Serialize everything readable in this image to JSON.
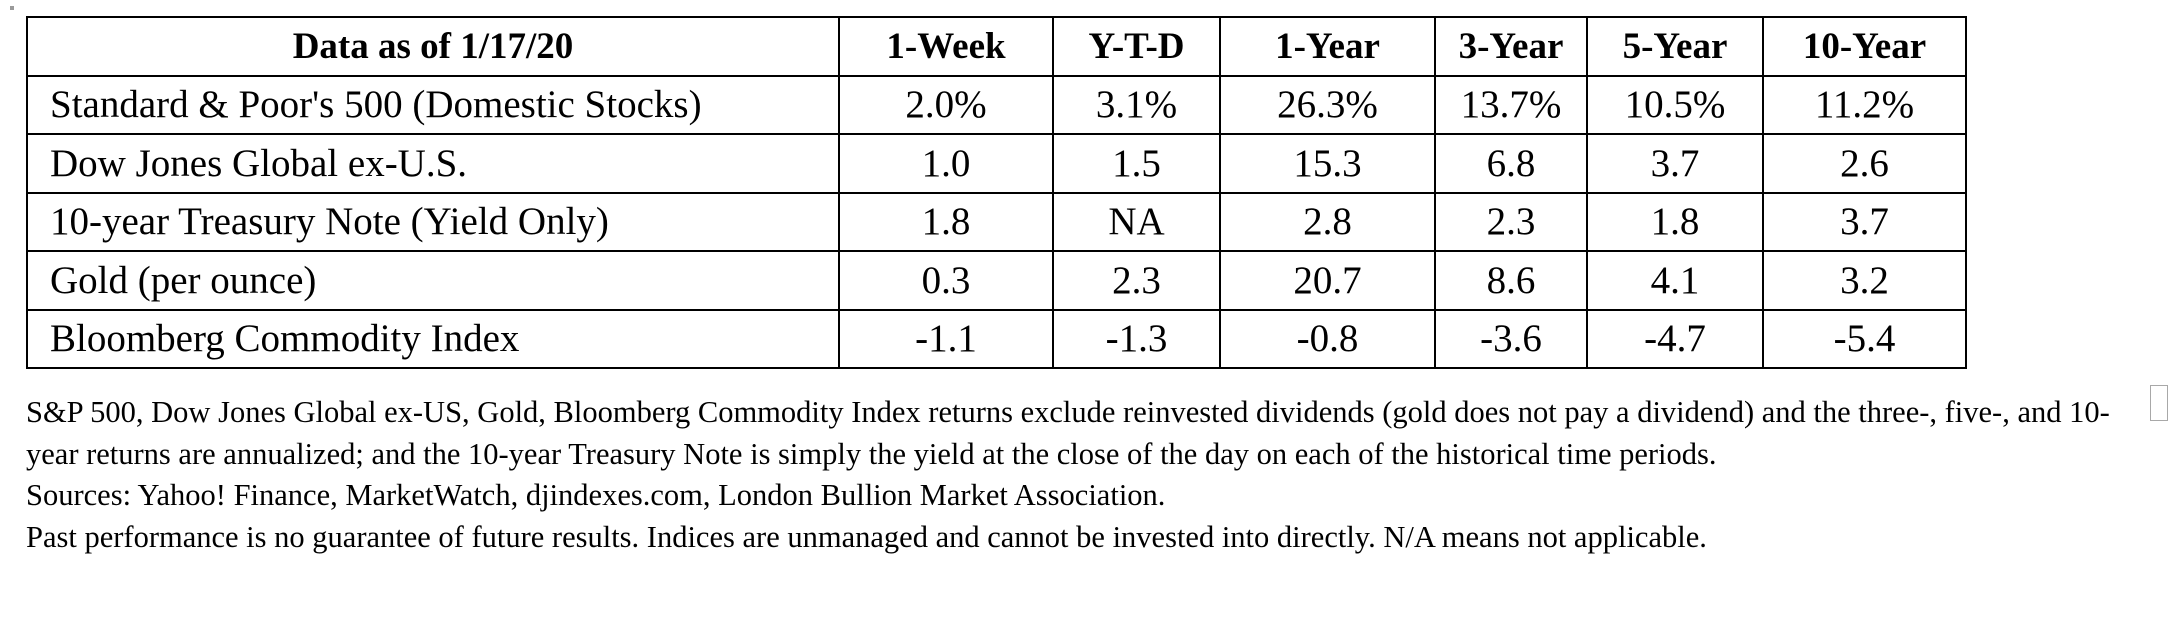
{
  "table": {
    "headers": [
      "Data as of 1/17/20",
      "1-Week",
      "Y-T-D",
      "1-Year",
      "3-Year",
      "5-Year",
      "10-Year"
    ],
    "rows": [
      {
        "label": "Standard & Poor's 500 (Domestic Stocks)",
        "values": [
          "2.0%",
          "3.1%",
          "26.3%",
          "13.7%",
          "10.5%",
          "11.2%"
        ]
      },
      {
        "label": "Dow Jones Global ex-U.S.",
        "values": [
          "1.0",
          "1.5",
          "15.3",
          "6.8",
          "3.7",
          "2.6"
        ]
      },
      {
        "label": "10-year Treasury Note (Yield Only)",
        "values": [
          "1.8",
          "NA",
          "2.8",
          "2.3",
          "1.8",
          "3.7"
        ]
      },
      {
        "label": "Gold (per ounce)",
        "values": [
          "0.3",
          "2.3",
          "20.7",
          "8.6",
          "4.1",
          "3.2"
        ]
      },
      {
        "label": "Bloomberg Commodity Index",
        "values": [
          "-1.1",
          "-1.3",
          "-0.8",
          "-3.6",
          "-4.7",
          "-5.4"
        ]
      }
    ]
  },
  "notes": {
    "disclaimer": "S&P 500, Dow Jones Global ex-US, Gold, Bloomberg Commodity Index returns exclude reinvested dividends (gold does not pay a dividend) and the three-, five-, and 10-year returns are annualized; and the 10-year Treasury Note is simply the yield at the close of the day on each of the historical time periods.",
    "sources": "Sources: Yahoo! Finance, MarketWatch, djindexes.com, London Bullion Market Association.",
    "past_performance": "Past performance is no guarantee of future results. Indices are unmanaged and cannot be invested into directly. N/A means not applicable."
  }
}
